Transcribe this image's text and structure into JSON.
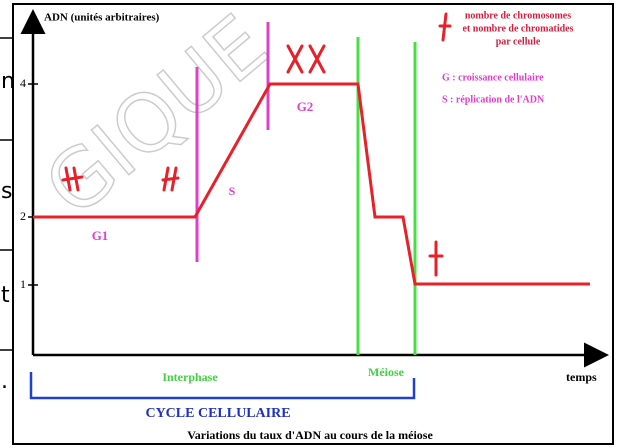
{
  "axes": {
    "y_label": "ADN (unités arbitraires)",
    "x_label": "temps",
    "y_ticks": [
      "4",
      "2",
      "1"
    ]
  },
  "phases": {
    "g1": "G1",
    "s": "S",
    "g2": "G2"
  },
  "legend": {
    "chromosomes": [
      "nombre de chromosomes",
      "et nombre de chromatides",
      "par cellule"
    ],
    "g": "G : croissance cellulaire",
    "s": "S : réplication de l'ADN"
  },
  "periods": {
    "interphase": "Interphase",
    "meiose": "Méiose",
    "cycle": "CYCLE CELLULAIRE"
  },
  "caption": "Variations du taux d'ADN au cours de la méiose",
  "watermark": "GIQUE",
  "side_fragments": [
    "n",
    "s",
    "t",
    "."
  ]
}
